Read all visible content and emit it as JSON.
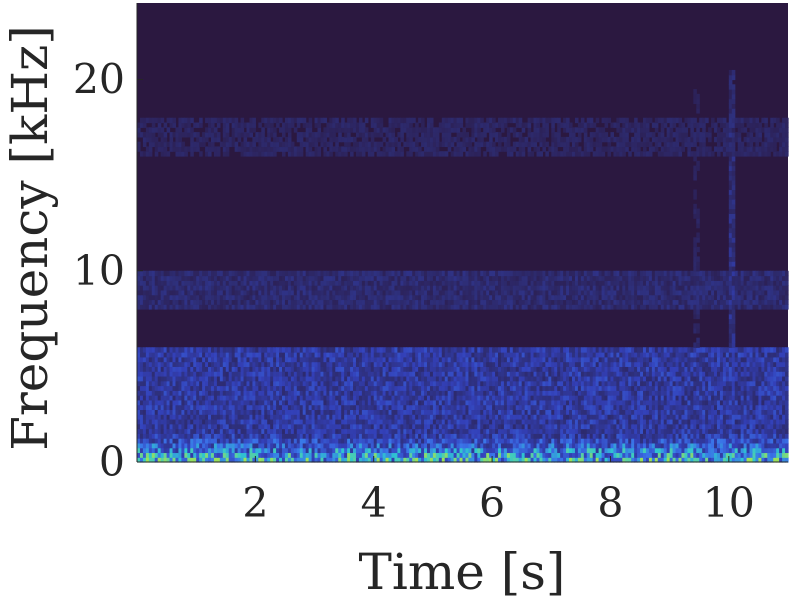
{
  "chart_data": {
    "type": "heatmap",
    "title": "",
    "xlabel": "Time [s]",
    "ylabel": "Frequency [kHz]",
    "xlim": [
      0,
      11
    ],
    "ylim": [
      0,
      24
    ],
    "xticks": [
      2,
      4,
      6,
      8,
      10
    ],
    "xtick_labels": [
      "2",
      "4",
      "6",
      "8",
      "10"
    ],
    "yticks": [
      0,
      10,
      20
    ],
    "ytick_labels": [
      "0",
      "10",
      "20"
    ],
    "grid": false,
    "legend": "none",
    "colormap": {
      "name": "parula-like",
      "stops": [
        "#2b1840",
        "#2e2f7a",
        "#3340b8",
        "#3a72e8",
        "#2fc6d0",
        "#9be05a"
      ]
    },
    "features": [
      {
        "kind": "broadband-low",
        "time_range": [
          0,
          11
        ],
        "freq_range_khz": [
          0,
          1.5
        ],
        "intensity": 0.85
      },
      {
        "kind": "energy-band",
        "time_range": [
          0,
          11
        ],
        "freq_range_khz": [
          0,
          6
        ],
        "intensity": 0.35
      },
      {
        "kind": "energy-band",
        "time_range": [
          0,
          11
        ],
        "freq_range_khz": [
          8,
          10
        ],
        "intensity": 0.18
      },
      {
        "kind": "energy-band",
        "time_range": [
          0,
          11
        ],
        "freq_range_khz": [
          16,
          18
        ],
        "intensity": 0.12
      },
      {
        "kind": "vertical-streak",
        "time": 10.05,
        "freq_range_khz": [
          0,
          20.5
        ],
        "intensity": 0.55
      },
      {
        "kind": "vertical-streak",
        "time": 9.45,
        "freq_range_khz": [
          0,
          20
        ],
        "intensity": 0.25
      }
    ]
  }
}
